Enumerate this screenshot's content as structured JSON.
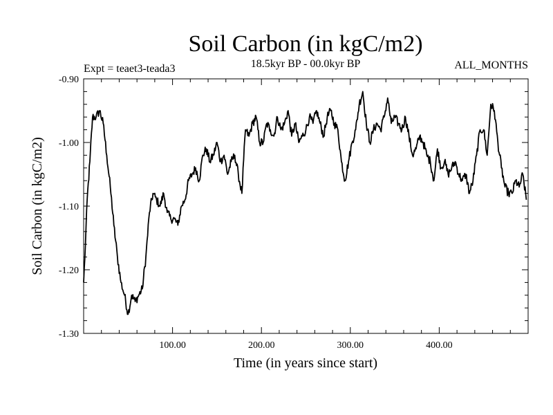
{
  "chart_data": {
    "type": "line",
    "title": "Soil Carbon (in kgC/m2)",
    "subtitle": "18.5kyr BP - 00.0kyr BP",
    "left_annotation": "Expt = teaet3-teada3",
    "right_annotation": "ALL_MONTHS",
    "xlabel": "Time (in years since start)",
    "ylabel": "Soil Carbon (in kgC/m2)",
    "xlim": [
      0,
      500
    ],
    "ylim": [
      -1.3,
      -0.9
    ],
    "x_ticks": [
      100,
      200,
      300,
      400
    ],
    "x_tick_labels": [
      "100.00",
      "200.00",
      "300.00",
      "400.00"
    ],
    "y_ticks": [
      -1.3,
      -1.2,
      -1.1,
      -1.0,
      -0.9
    ],
    "y_tick_labels": [
      "-1.30",
      "-1.20",
      "-1.10",
      "-1.00",
      "-0.90"
    ],
    "grid": false,
    "series": [
      {
        "name": "Soil Carbon",
        "color": "#000000",
        "x": [
          0,
          2,
          4,
          7,
          10,
          14,
          18,
          22,
          26,
          30,
          34,
          38,
          42,
          46,
          50,
          54,
          58,
          62,
          66,
          70,
          74,
          78,
          82,
          86,
          90,
          94,
          98,
          102,
          106,
          110,
          114,
          118,
          122,
          126,
          130,
          134,
          138,
          142,
          146,
          150,
          154,
          158,
          162,
          166,
          170,
          174,
          178,
          182,
          186,
          190,
          194,
          198,
          202,
          206,
          210,
          214,
          218,
          222,
          226,
          230,
          234,
          238,
          242,
          246,
          250,
          254,
          258,
          262,
          266,
          270,
          274,
          278,
          282,
          286,
          290,
          294,
          298,
          302,
          306,
          310,
          314,
          318,
          322,
          326,
          330,
          334,
          338,
          342,
          346,
          350,
          354,
          358,
          362,
          366,
          370,
          374,
          378,
          382,
          386,
          390,
          394,
          398,
          402,
          406,
          410,
          414,
          418,
          422,
          426,
          430,
          434,
          438,
          442,
          446,
          450,
          454,
          458,
          462,
          466,
          470,
          474,
          478,
          482,
          486,
          490,
          494,
          498
        ],
        "values": [
          -1.22,
          -1.16,
          -1.09,
          -1.03,
          -0.96,
          -0.96,
          -0.95,
          -0.97,
          -1.02,
          -1.07,
          -1.13,
          -1.18,
          -1.22,
          -1.24,
          -1.27,
          -1.24,
          -1.25,
          -1.24,
          -1.23,
          -1.18,
          -1.11,
          -1.08,
          -1.09,
          -1.1,
          -1.08,
          -1.11,
          -1.12,
          -1.12,
          -1.13,
          -1.1,
          -1.09,
          -1.06,
          -1.05,
          -1.04,
          -1.06,
          -1.02,
          -1.01,
          -1.03,
          -1.02,
          -1.0,
          -1.03,
          -1.02,
          -1.05,
          -1.03,
          -1.02,
          -1.05,
          -1.08,
          -0.98,
          -0.99,
          -0.97,
          -0.96,
          -1.0,
          -1.0,
          -0.97,
          -0.98,
          -0.99,
          -0.96,
          -0.98,
          -0.97,
          -0.95,
          -0.99,
          -0.97,
          -1.0,
          -0.99,
          -0.98,
          -0.96,
          -0.97,
          -0.95,
          -0.97,
          -0.99,
          -0.96,
          -0.95,
          -0.97,
          -0.98,
          -1.03,
          -1.06,
          -1.03,
          -1.0,
          -0.98,
          -0.94,
          -0.92,
          -0.97,
          -1.0,
          -0.98,
          -0.97,
          -0.98,
          -0.96,
          -0.93,
          -0.97,
          -0.96,
          -0.97,
          -0.98,
          -0.96,
          -0.99,
          -1.02,
          -1.01,
          -0.99,
          -1.0,
          -1.02,
          -1.03,
          -1.06,
          -1.01,
          -1.04,
          -1.03,
          -1.05,
          -1.04,
          -1.03,
          -1.05,
          -1.06,
          -1.05,
          -1.08,
          -1.06,
          -1.02,
          -0.98,
          -0.98,
          -1.02,
          -0.94,
          -0.95,
          -1.0,
          -1.04,
          -1.07,
          -1.08,
          -1.08,
          -1.06,
          -1.07,
          -1.05,
          -1.09
        ]
      }
    ]
  }
}
